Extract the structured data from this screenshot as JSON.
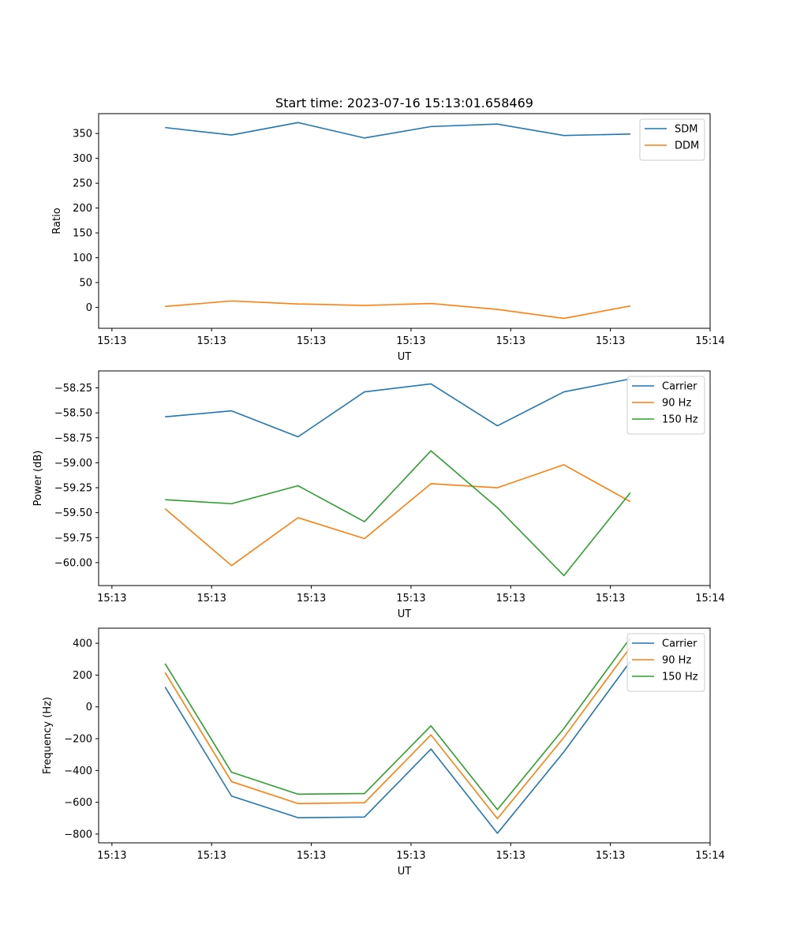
{
  "title": "Start time: 2023-07-16 15:13:01.658469",
  "chart_data": [
    {
      "type": "line",
      "title": "Start time: 2023-07-16 15:13:01.658469",
      "xlabel": "UT",
      "ylabel": "Ratio",
      "x": [
        1,
        2,
        3,
        4,
        5,
        6,
        7,
        8
      ],
      "xlim": [
        0,
        9.2
      ],
      "x_ticks": [
        0.2,
        1.7,
        3.2,
        4.7,
        6.2,
        7.7,
        9.2
      ],
      "x_tick_labels": [
        "15:13",
        "15:13",
        "15:13",
        "15:13",
        "15:13",
        "15:13",
        "15:14"
      ],
      "ylim": [
        -42,
        390
      ],
      "y_ticks": [
        0,
        50,
        100,
        150,
        200,
        250,
        300,
        350
      ],
      "y_tick_labels": [
        "0",
        "50",
        "100",
        "150",
        "200",
        "250",
        "300",
        "350"
      ],
      "legend": "top-right",
      "series": [
        {
          "name": "SDM",
          "color": "#1f77b4",
          "values": [
            362,
            347,
            372,
            341,
            364,
            369,
            346,
            349
          ]
        },
        {
          "name": "DDM",
          "color": "#ff7f0e",
          "values": [
            2,
            13,
            7,
            4,
            8,
            -4,
            -22,
            3
          ]
        }
      ]
    },
    {
      "type": "line",
      "xlabel": "UT",
      "ylabel": "Power (dB)",
      "x": [
        1,
        2,
        3,
        4,
        5,
        6,
        7,
        8
      ],
      "xlim": [
        0,
        9.2
      ],
      "x_ticks": [
        0.2,
        1.7,
        3.2,
        4.7,
        6.2,
        7.7,
        9.2
      ],
      "x_tick_labels": [
        "15:13",
        "15:13",
        "15:13",
        "15:13",
        "15:13",
        "15:13",
        "15:14"
      ],
      "ylim": [
        -60.23,
        -58.08
      ],
      "y_ticks": [
        -60.0,
        -59.75,
        -59.5,
        -59.25,
        -59.0,
        -58.75,
        -58.5,
        -58.25
      ],
      "y_tick_labels": [
        "−60.00",
        "−59.75",
        "−59.50",
        "−59.25",
        "−59.00",
        "−58.75",
        "−58.50",
        "−58.25"
      ],
      "legend": "top-right",
      "series": [
        {
          "name": "Carrier",
          "color": "#1f77b4",
          "values": [
            -58.54,
            -58.48,
            -58.74,
            -58.29,
            -58.21,
            -58.63,
            -58.29,
            -58.16
          ]
        },
        {
          "name": "90 Hz",
          "color": "#ff7f0e",
          "values": [
            -59.46,
            -60.03,
            -59.55,
            -59.76,
            -59.21,
            -59.25,
            -59.02,
            -59.39
          ]
        },
        {
          "name": "150 Hz",
          "color": "#2ca02c",
          "values": [
            -59.37,
            -59.41,
            -59.23,
            -59.59,
            -58.88,
            -59.45,
            -60.13,
            -59.3
          ]
        }
      ]
    },
    {
      "type": "line",
      "xlabel": "UT",
      "ylabel": "Frequency (Hz)",
      "x": [
        1,
        2,
        3,
        4,
        5,
        6,
        7,
        8
      ],
      "xlim": [
        0,
        9.2
      ],
      "x_ticks": [
        0.2,
        1.7,
        3.2,
        4.7,
        6.2,
        7.7,
        9.2
      ],
      "x_tick_labels": [
        "15:13",
        "15:13",
        "15:13",
        "15:13",
        "15:13",
        "15:13",
        "15:14"
      ],
      "ylim": [
        -855,
        495
      ],
      "y_ticks": [
        -800,
        -600,
        -400,
        -200,
        0,
        200,
        400
      ],
      "y_tick_labels": [
        "−800",
        "−600",
        "−400",
        "−200",
        "0",
        "200",
        "400"
      ],
      "legend": "top-right",
      "series": [
        {
          "name": "Carrier",
          "color": "#1f77b4",
          "values": [
            125,
            -561,
            -697,
            -693,
            -265,
            -795,
            -283,
            286
          ]
        },
        {
          "name": "90 Hz",
          "color": "#ff7f0e",
          "values": [
            216,
            -470,
            -608,
            -603,
            -176,
            -703,
            -192,
            375
          ]
        },
        {
          "name": "150 Hz",
          "color": "#2ca02c",
          "values": [
            272,
            -411,
            -549,
            -545,
            -119,
            -646,
            -136,
            434
          ]
        }
      ]
    }
  ]
}
